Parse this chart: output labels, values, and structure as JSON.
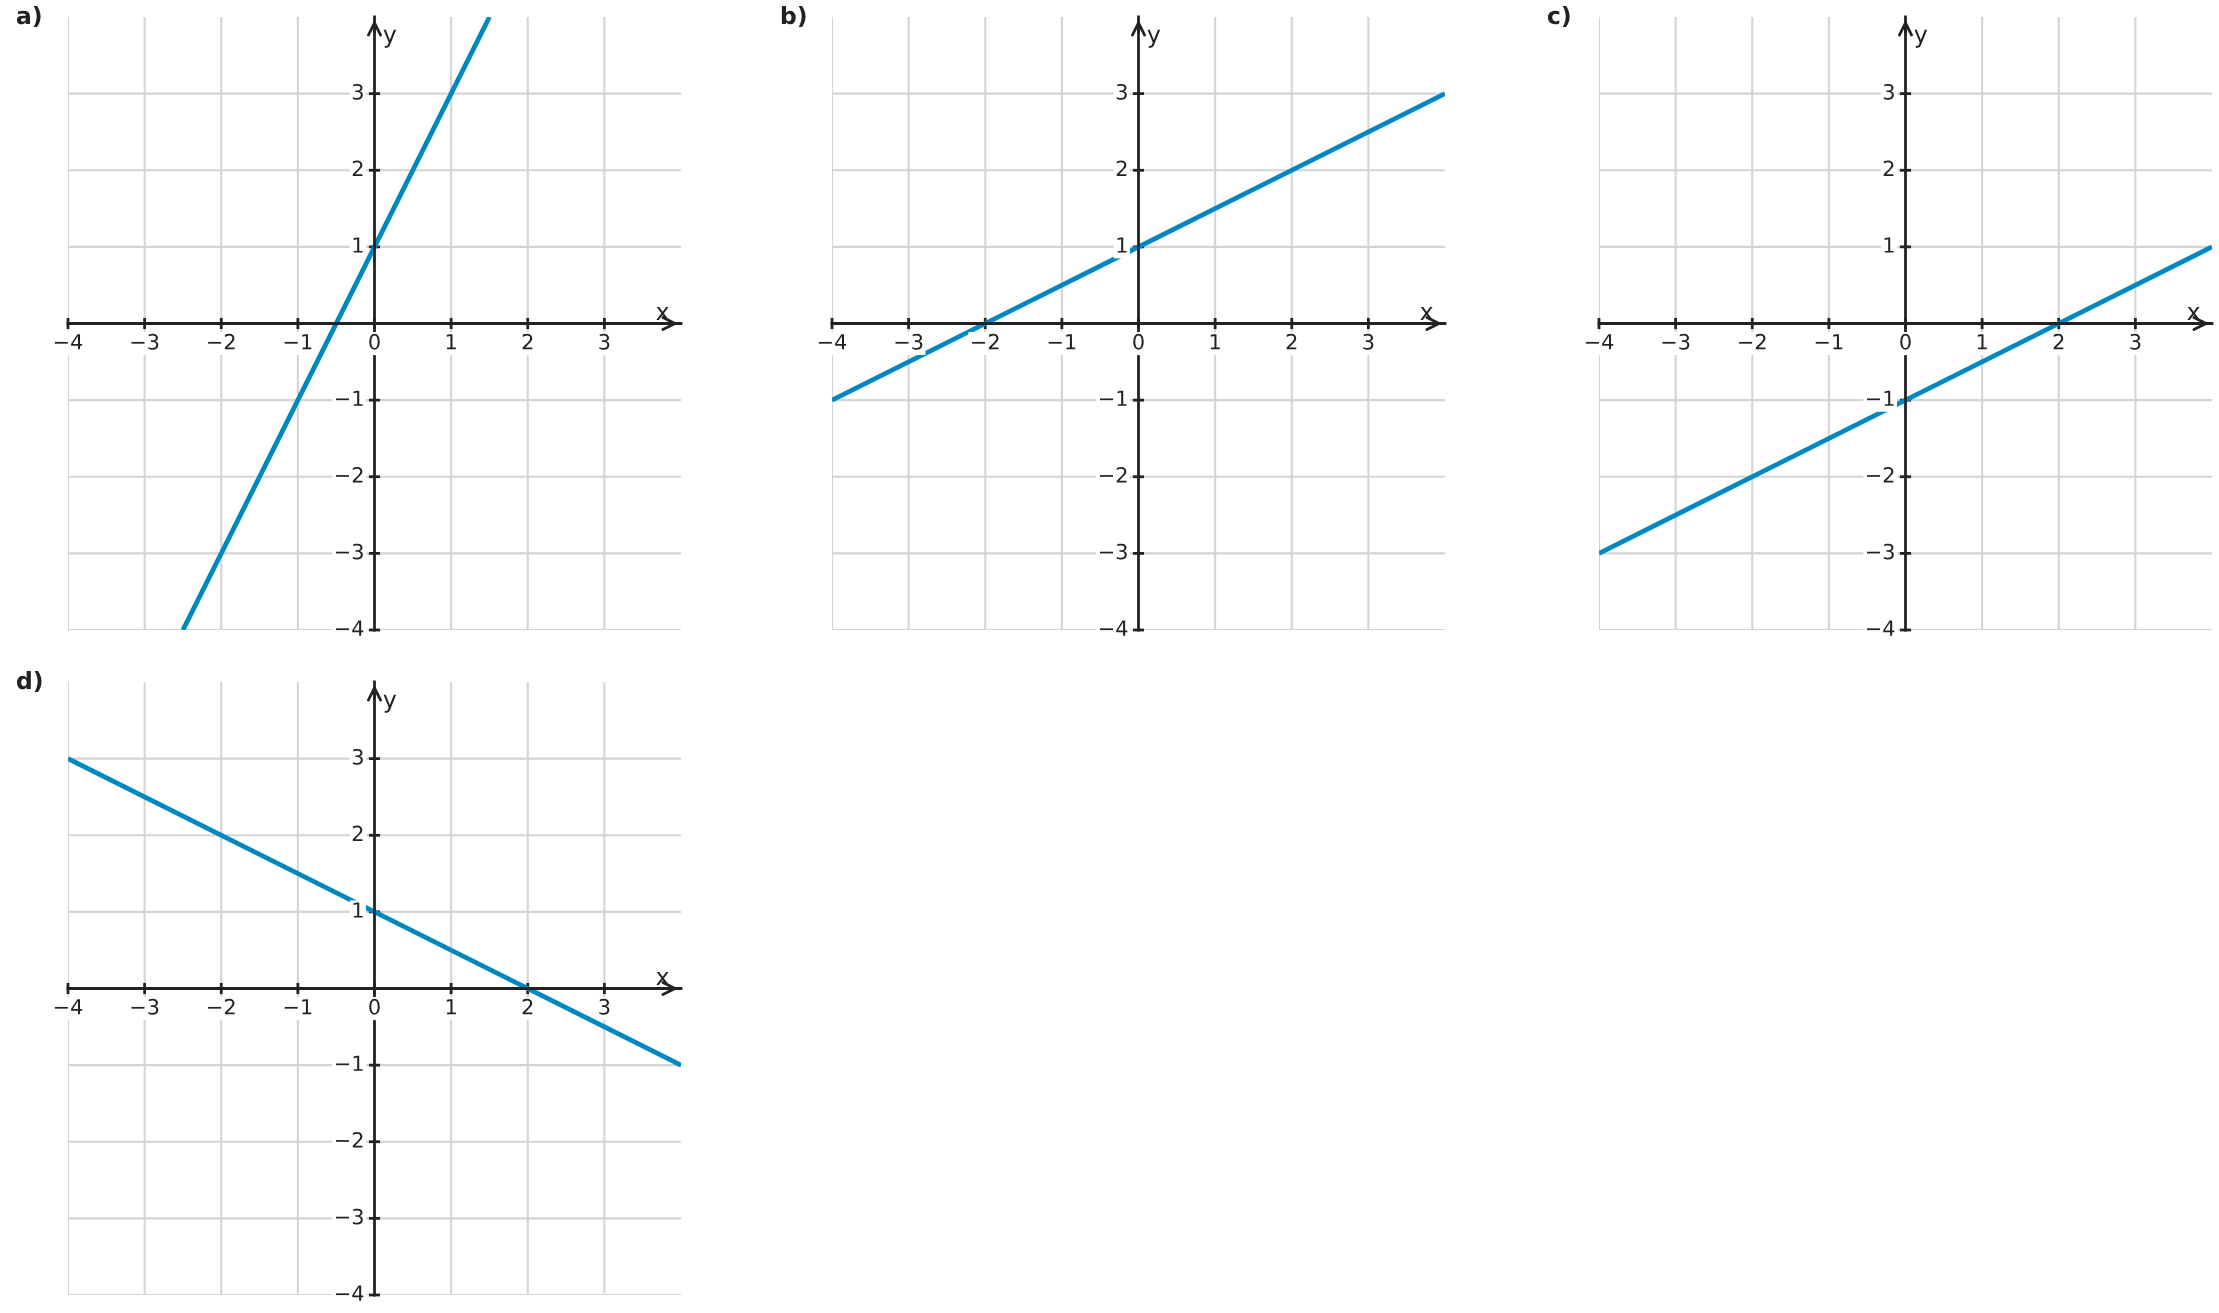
{
  "chart_data": [
    {
      "type": "line",
      "title": "a)",
      "xlabel": "x",
      "ylabel": "y",
      "xlim": [
        -4,
        4
      ],
      "ylim": [
        -4,
        4
      ],
      "xticks": [
        {
          "value": -4,
          "label": "−4"
        },
        {
          "value": -3,
          "label": "−3"
        },
        {
          "value": -2,
          "label": "−2"
        },
        {
          "value": -1,
          "label": "−1"
        },
        0,
        1,
        2,
        3
      ],
      "yticks": [
        {
          "value": -4,
          "label": "−4"
        },
        {
          "value": -3,
          "label": "−3"
        },
        {
          "value": -2,
          "label": "−2"
        },
        {
          "value": -1,
          "label": "−1"
        },
        1,
        2,
        3
      ],
      "grid": true,
      "marker": "none",
      "line_style": "solid",
      "series": [
        {
          "color": "#0088c0",
          "x": [
            -2.5,
            1.5
          ],
          "values": [
            -4,
            4
          ]
        }
      ]
    },
    {
      "type": "line",
      "title": "b)",
      "xlabel": "x",
      "ylabel": "y",
      "xlim": [
        -4,
        4
      ],
      "ylim": [
        -4,
        4
      ],
      "xticks": [
        {
          "value": -4,
          "label": "−4"
        },
        {
          "value": -3,
          "label": "−3"
        },
        {
          "value": -2,
          "label": "−2"
        },
        {
          "value": -1,
          "label": "−1"
        },
        0,
        1,
        2,
        3
      ],
      "yticks": [
        {
          "value": -4,
          "label": "−4"
        },
        {
          "value": -3,
          "label": "−3"
        },
        {
          "value": -2,
          "label": "−2"
        },
        {
          "value": -1,
          "label": "−1"
        },
        1,
        2,
        3
      ],
      "grid": true,
      "marker": "none",
      "line_style": "solid",
      "series": [
        {
          "color": "#0088c0",
          "x": [
            -4,
            4
          ],
          "values": [
            -1,
            3
          ]
        }
      ]
    },
    {
      "type": "line",
      "title": "c)",
      "xlabel": "x",
      "ylabel": "y",
      "xlim": [
        -4,
        4
      ],
      "ylim": [
        -4,
        4
      ],
      "xticks": [
        {
          "value": -4,
          "label": "−4"
        },
        {
          "value": -3,
          "label": "−3"
        },
        {
          "value": -2,
          "label": "−2"
        },
        {
          "value": -1,
          "label": "−1"
        },
        0,
        1,
        2,
        3
      ],
      "yticks": [
        {
          "value": -4,
          "label": "−4"
        },
        {
          "value": -3,
          "label": "−3"
        },
        {
          "value": -2,
          "label": "−2"
        },
        {
          "value": -1,
          "label": "−1"
        },
        1,
        2,
        3
      ],
      "grid": true,
      "marker": "none",
      "line_style": "solid",
      "series": [
        {
          "color": "#0088c0",
          "x": [
            -4,
            4
          ],
          "values": [
            -3,
            1
          ]
        }
      ]
    },
    {
      "type": "line",
      "title": "d)",
      "xlabel": "x",
      "ylabel": "y",
      "xlim": [
        -4,
        4
      ],
      "ylim": [
        -4,
        4
      ],
      "xticks": [
        {
          "value": -4,
          "label": "−4"
        },
        {
          "value": -3,
          "label": "−3"
        },
        {
          "value": -2,
          "label": "−2"
        },
        {
          "value": -1,
          "label": "−1"
        },
        0,
        1,
        2,
        3
      ],
      "yticks": [
        {
          "value": -4,
          "label": "−4"
        },
        {
          "value": -3,
          "label": "−3"
        },
        {
          "value": -2,
          "label": "−2"
        },
        {
          "value": -1,
          "label": "−1"
        },
        1,
        2,
        3
      ],
      "grid": true,
      "marker": "none",
      "line_style": "solid",
      "series": [
        {
          "color": "#0088c0",
          "x": [
            -4,
            4
          ],
          "values": [
            3,
            -1
          ]
        }
      ]
    }
  ]
}
